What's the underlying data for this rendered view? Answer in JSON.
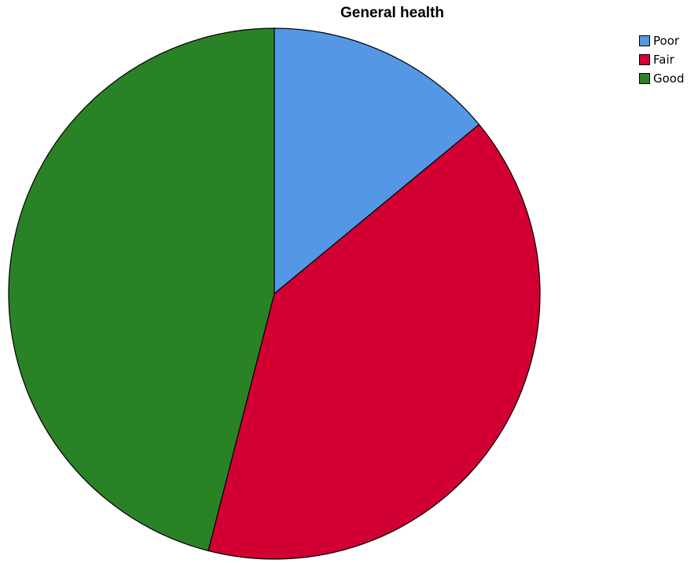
{
  "chart_data": {
    "type": "pie",
    "title": "General health",
    "categories": [
      "Poor",
      "Fair",
      "Good"
    ],
    "values": [
      14,
      40,
      46
    ],
    "colors": [
      "#5497E5",
      "#D20032",
      "#2A8227"
    ],
    "start_angle_deg": 0,
    "direction": "clockwise",
    "legend": {
      "position": "top-right",
      "items": [
        "Poor",
        "Fair",
        "Good"
      ]
    }
  }
}
